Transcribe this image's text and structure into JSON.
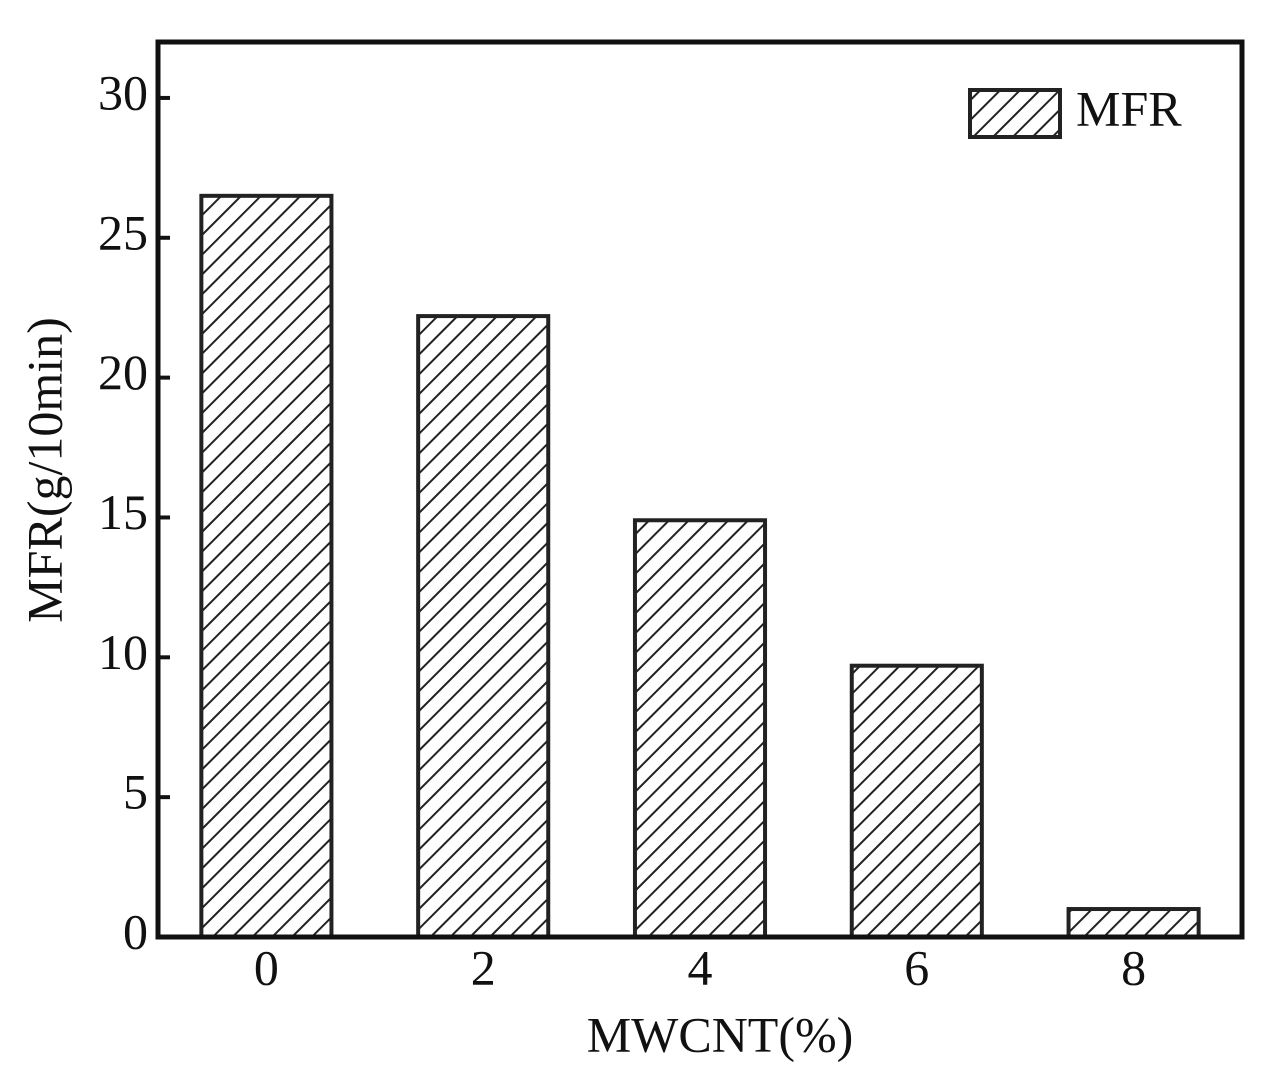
{
  "chart_data": {
    "type": "bar",
    "categories": [
      "0",
      "2",
      "4",
      "6",
      "8"
    ],
    "series": [
      {
        "name": "MFR",
        "color": "#222222",
        "values": [
          26.5,
          22.2,
          14.9,
          9.7,
          1.0
        ]
      }
    ],
    "xlabel": "MWCNT(%)",
    "ylabel": "MFR(g/10min)",
    "ylim": [
      0,
      32
    ],
    "yticks": [
      0,
      5,
      10,
      15,
      20,
      25,
      30
    ],
    "legend": "upper right",
    "pattern": "hatch"
  }
}
